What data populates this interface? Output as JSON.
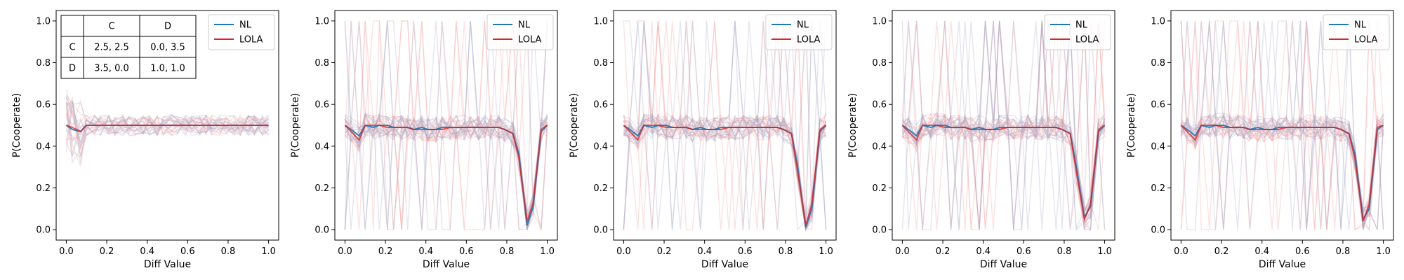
{
  "chart_data": [
    {
      "type": "line",
      "xlabel": "Diff Value",
      "ylabel": "P(Cooperate)",
      "xlim": [
        -0.05,
        1.05
      ],
      "ylim": [
        -0.05,
        1.05
      ],
      "xticks": [
        "0.0",
        "0.2",
        "0.4",
        "0.6",
        "0.8",
        "1.0"
      ],
      "yticks": [
        "0.0",
        "0.2",
        "0.4",
        "0.6",
        "0.8",
        "1.0"
      ],
      "grid": false,
      "legend": {
        "position": "top-right",
        "entries": [
          "NL",
          "LOLA"
        ]
      },
      "payoff_table": {
        "col_headers": [
          "",
          "C",
          "D"
        ],
        "rows": [
          [
            "C",
            "2.5, 2.5",
            "0.0, 3.5"
          ],
          [
            "D",
            "3.5, 0.0",
            "1.0, 1.0"
          ]
        ]
      },
      "x": [
        0.0,
        0.03,
        0.07,
        0.1,
        0.14,
        0.17,
        0.21,
        0.24,
        0.28,
        0.31,
        0.34,
        0.38,
        0.41,
        0.45,
        0.48,
        0.52,
        0.55,
        0.59,
        0.62,
        0.66,
        0.69,
        0.72,
        0.76,
        0.79,
        0.83,
        0.86,
        0.9,
        0.93,
        0.97,
        1.0
      ],
      "series": [
        {
          "name": "NL",
          "values": [
            0.5,
            0.48,
            0.47,
            0.5,
            0.5,
            0.5,
            0.5,
            0.5,
            0.5,
            0.5,
            0.5,
            0.5,
            0.5,
            0.5,
            0.5,
            0.5,
            0.5,
            0.5,
            0.5,
            0.5,
            0.5,
            0.5,
            0.5,
            0.5,
            0.5,
            0.5,
            0.5,
            0.5,
            0.5,
            0.5
          ]
        },
        {
          "name": "LOLA",
          "values": [
            0.5,
            0.49,
            0.47,
            0.5,
            0.5,
            0.5,
            0.5,
            0.5,
            0.5,
            0.5,
            0.5,
            0.5,
            0.5,
            0.5,
            0.5,
            0.5,
            0.5,
            0.5,
            0.5,
            0.5,
            0.5,
            0.5,
            0.5,
            0.5,
            0.5,
            0.5,
            0.5,
            0.5,
            0.5,
            0.5
          ]
        }
      ],
      "colors": {
        "NL": "#1f77b4",
        "LOLA": "#d62728"
      }
    },
    {
      "type": "line",
      "xlabel": "Diff Value",
      "ylabel": "P(Cooperate)",
      "xlim": [
        -0.05,
        1.05
      ],
      "ylim": [
        -0.05,
        1.05
      ],
      "xticks": [
        "0.0",
        "0.2",
        "0.4",
        "0.6",
        "0.8",
        "1.0"
      ],
      "yticks": [
        "0.0",
        "0.2",
        "0.4",
        "0.6",
        "0.8",
        "1.0"
      ],
      "grid": false,
      "legend": {
        "position": "top-right",
        "entries": [
          "NL",
          "LOLA"
        ]
      },
      "x": [
        0.0,
        0.03,
        0.07,
        0.1,
        0.14,
        0.17,
        0.21,
        0.24,
        0.28,
        0.31,
        0.34,
        0.38,
        0.41,
        0.45,
        0.48,
        0.52,
        0.55,
        0.59,
        0.62,
        0.66,
        0.69,
        0.72,
        0.76,
        0.79,
        0.83,
        0.86,
        0.9,
        0.93,
        0.97,
        1.0
      ],
      "series": [
        {
          "name": "NL",
          "values": [
            0.5,
            0.48,
            0.45,
            0.5,
            0.49,
            0.5,
            0.5,
            0.49,
            0.49,
            0.49,
            0.48,
            0.49,
            0.48,
            0.48,
            0.49,
            0.49,
            0.49,
            0.49,
            0.49,
            0.49,
            0.49,
            0.49,
            0.49,
            0.48,
            0.46,
            0.36,
            0.02,
            0.11,
            0.47,
            0.5
          ]
        },
        {
          "name": "LOLA",
          "values": [
            0.5,
            0.47,
            0.43,
            0.5,
            0.5,
            0.5,
            0.49,
            0.49,
            0.49,
            0.49,
            0.48,
            0.48,
            0.48,
            0.48,
            0.48,
            0.49,
            0.49,
            0.49,
            0.49,
            0.49,
            0.49,
            0.49,
            0.49,
            0.48,
            0.46,
            0.34,
            0.04,
            0.13,
            0.48,
            0.5
          ]
        }
      ],
      "colors": {
        "NL": "#1f77b4",
        "LOLA": "#d62728"
      }
    },
    {
      "type": "line",
      "xlabel": "Diff Value",
      "ylabel": "P(Cooperate)",
      "xlim": [
        -0.05,
        1.05
      ],
      "ylim": [
        -0.05,
        1.05
      ],
      "xticks": [
        "0.0",
        "0.2",
        "0.4",
        "0.6",
        "0.8",
        "1.0"
      ],
      "yticks": [
        "0.0",
        "0.2",
        "0.4",
        "0.6",
        "0.8",
        "1.0"
      ],
      "grid": false,
      "legend": {
        "position": "top-right",
        "entries": [
          "NL",
          "LOLA"
        ]
      },
      "x": [
        0.0,
        0.03,
        0.07,
        0.1,
        0.14,
        0.17,
        0.21,
        0.24,
        0.28,
        0.31,
        0.34,
        0.38,
        0.41,
        0.45,
        0.48,
        0.52,
        0.55,
        0.59,
        0.62,
        0.66,
        0.69,
        0.72,
        0.76,
        0.79,
        0.83,
        0.86,
        0.9,
        0.93,
        0.97,
        1.0
      ],
      "series": [
        {
          "name": "NL",
          "values": [
            0.5,
            0.48,
            0.45,
            0.5,
            0.49,
            0.5,
            0.5,
            0.49,
            0.49,
            0.49,
            0.48,
            0.49,
            0.48,
            0.48,
            0.49,
            0.49,
            0.49,
            0.49,
            0.49,
            0.49,
            0.49,
            0.49,
            0.49,
            0.48,
            0.46,
            0.3,
            0.01,
            0.1,
            0.47,
            0.5
          ]
        },
        {
          "name": "LOLA",
          "values": [
            0.5,
            0.47,
            0.43,
            0.5,
            0.5,
            0.5,
            0.49,
            0.49,
            0.49,
            0.49,
            0.48,
            0.48,
            0.48,
            0.48,
            0.48,
            0.49,
            0.49,
            0.49,
            0.49,
            0.49,
            0.49,
            0.49,
            0.49,
            0.48,
            0.46,
            0.28,
            0.02,
            0.12,
            0.48,
            0.5
          ]
        }
      ],
      "colors": {
        "NL": "#1f77b4",
        "LOLA": "#d62728"
      }
    },
    {
      "type": "line",
      "xlabel": "Diff Value",
      "ylabel": "P(Cooperate)",
      "xlim": [
        -0.05,
        1.05
      ],
      "ylim": [
        -0.05,
        1.05
      ],
      "xticks": [
        "0.0",
        "0.2",
        "0.4",
        "0.6",
        "0.8",
        "1.0"
      ],
      "yticks": [
        "0.0",
        "0.2",
        "0.4",
        "0.6",
        "0.8",
        "1.0"
      ],
      "grid": false,
      "legend": {
        "position": "top-right",
        "entries": [
          "NL",
          "LOLA"
        ]
      },
      "x": [
        0.0,
        0.03,
        0.07,
        0.1,
        0.14,
        0.17,
        0.21,
        0.24,
        0.28,
        0.31,
        0.34,
        0.38,
        0.41,
        0.45,
        0.48,
        0.52,
        0.55,
        0.59,
        0.62,
        0.66,
        0.69,
        0.72,
        0.76,
        0.79,
        0.83,
        0.86,
        0.9,
        0.93,
        0.97,
        1.0
      ],
      "series": [
        {
          "name": "NL",
          "values": [
            0.5,
            0.48,
            0.45,
            0.5,
            0.49,
            0.5,
            0.5,
            0.49,
            0.49,
            0.49,
            0.48,
            0.49,
            0.48,
            0.48,
            0.49,
            0.49,
            0.49,
            0.49,
            0.49,
            0.49,
            0.49,
            0.49,
            0.49,
            0.48,
            0.46,
            0.3,
            0.06,
            0.11,
            0.47,
            0.5
          ]
        },
        {
          "name": "LOLA",
          "values": [
            0.5,
            0.47,
            0.43,
            0.5,
            0.5,
            0.5,
            0.49,
            0.49,
            0.49,
            0.49,
            0.48,
            0.48,
            0.48,
            0.48,
            0.48,
            0.49,
            0.49,
            0.49,
            0.49,
            0.49,
            0.49,
            0.49,
            0.49,
            0.48,
            0.46,
            0.28,
            0.05,
            0.12,
            0.48,
            0.5
          ]
        }
      ],
      "colors": {
        "NL": "#1f77b4",
        "LOLA": "#d62728"
      }
    },
    {
      "type": "line",
      "xlabel": "Diff Value",
      "ylabel": "P(Cooperate)",
      "xlim": [
        -0.05,
        1.05
      ],
      "ylim": [
        -0.05,
        1.05
      ],
      "xticks": [
        "0.0",
        "0.2",
        "0.4",
        "0.6",
        "0.8",
        "1.0"
      ],
      "yticks": [
        "0.0",
        "0.2",
        "0.4",
        "0.6",
        "0.8",
        "1.0"
      ],
      "grid": false,
      "legend": {
        "position": "top-right",
        "entries": [
          "NL",
          "LOLA"
        ]
      },
      "x": [
        0.0,
        0.03,
        0.07,
        0.1,
        0.14,
        0.17,
        0.21,
        0.24,
        0.28,
        0.31,
        0.34,
        0.38,
        0.41,
        0.45,
        0.48,
        0.52,
        0.55,
        0.59,
        0.62,
        0.66,
        0.69,
        0.72,
        0.76,
        0.79,
        0.83,
        0.86,
        0.9,
        0.93,
        0.97,
        1.0
      ],
      "series": [
        {
          "name": "NL",
          "values": [
            0.5,
            0.48,
            0.45,
            0.5,
            0.49,
            0.5,
            0.5,
            0.49,
            0.49,
            0.49,
            0.48,
            0.49,
            0.48,
            0.48,
            0.49,
            0.49,
            0.49,
            0.49,
            0.49,
            0.49,
            0.49,
            0.49,
            0.49,
            0.48,
            0.46,
            0.36,
            0.05,
            0.1,
            0.48,
            0.5
          ]
        },
        {
          "name": "LOLA",
          "values": [
            0.5,
            0.47,
            0.43,
            0.5,
            0.5,
            0.5,
            0.49,
            0.49,
            0.49,
            0.49,
            0.48,
            0.48,
            0.48,
            0.48,
            0.48,
            0.49,
            0.49,
            0.49,
            0.49,
            0.49,
            0.49,
            0.49,
            0.49,
            0.48,
            0.46,
            0.34,
            0.04,
            0.12,
            0.49,
            0.5
          ]
        }
      ],
      "colors": {
        "NL": "#1f77b4",
        "LOLA": "#d62728"
      }
    }
  ]
}
